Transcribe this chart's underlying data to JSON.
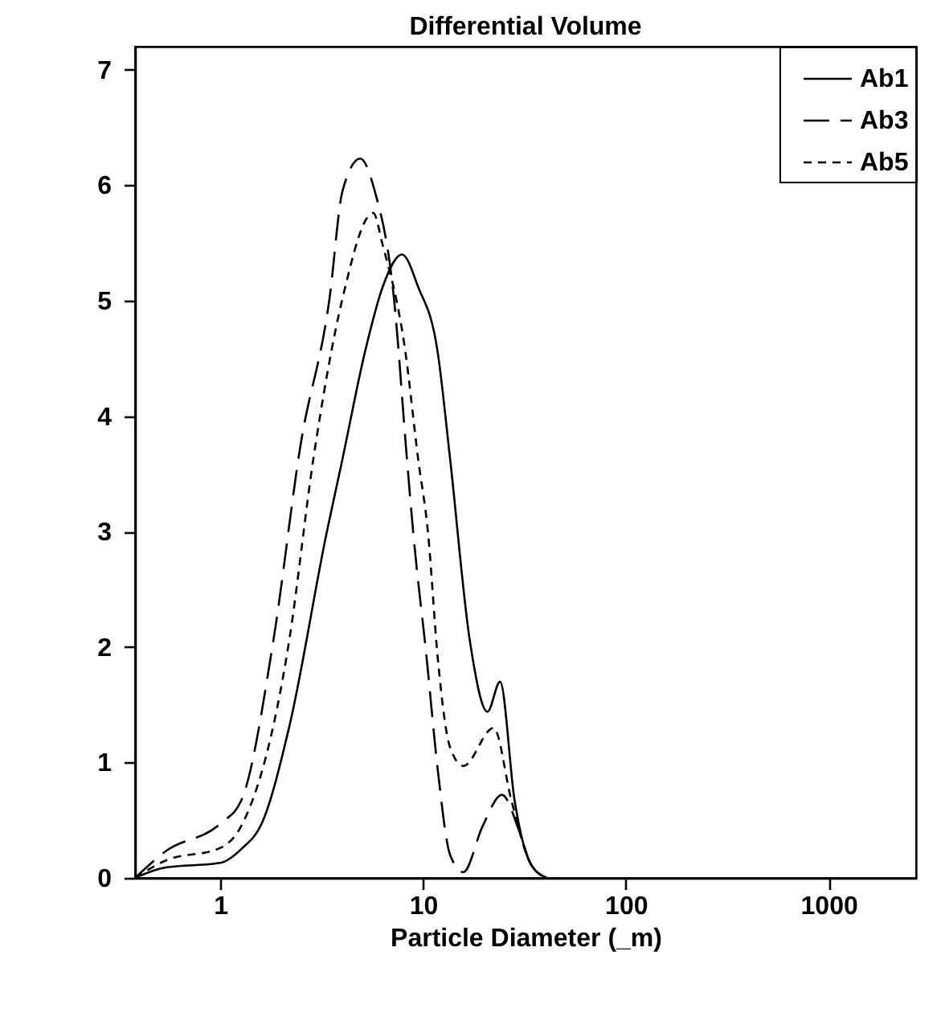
{
  "chart_data": {
    "type": "line",
    "title": "Differential Volume",
    "xlabel": "Particle Diameter (_m)",
    "log": "x",
    "xlim": [
      0.38,
      2700
    ],
    "xticks": [
      1,
      10,
      100,
      1000
    ],
    "ylim": [
      0,
      7.2
    ],
    "yticks": [
      0,
      1,
      2,
      3,
      4,
      5,
      6,
      7
    ],
    "grid": false,
    "legend": "top right",
    "marker": "none",
    "series": [
      {
        "name": "Ab1",
        "color": "#000000",
        "line_style": "solid",
        "x": [
          0.38,
          0.537,
          1,
          1.27,
          1.61,
          2.19,
          3.34,
          4.01,
          5.18,
          6.33,
          7.88,
          9.46,
          11.8,
          13.6,
          17.0,
          20.8,
          24.0,
          28.3,
          34.0,
          40.8
        ],
        "values": [
          0,
          0.09,
          0.13,
          0.25,
          0.48,
          1.31,
          2.98,
          3.63,
          4.56,
          5.12,
          5.4,
          5.12,
          4.56,
          3.63,
          2.06,
          1.44,
          1.7,
          0.67,
          0.12,
          0
        ]
      },
      {
        "name": "Ab3",
        "color": "#000000",
        "line_style": "dashed",
        "x": [
          0.38,
          0.537,
          1,
          1.27,
          1.83,
          2.49,
          3.46,
          4.01,
          4.9,
          5.78,
          7.19,
          8.33,
          8.96,
          10.4,
          11.8,
          13.6,
          15.8,
          19.7,
          24.5,
          29.9,
          34.0,
          40.8
        ],
        "values": [
          0,
          0.23,
          0.47,
          0.67,
          2.06,
          3.75,
          5.02,
          5.95,
          6.23,
          5.95,
          5.02,
          3.63,
          2.98,
          1.92,
          0.95,
          0.2,
          0.05,
          0.45,
          0.72,
          0.4,
          0.12,
          0
        ]
      },
      {
        "name": "Ab5",
        "color": "#000000",
        "line_style": "dotted",
        "x": [
          0.38,
          0.537,
          1,
          1.27,
          2.19,
          2.88,
          4.01,
          5.68,
          6.33,
          8.18,
          9.46,
          10.6,
          11.8,
          13.6,
          15.8,
          22.3,
          27.3,
          34.0,
          40.8
        ],
        "values": [
          0,
          0.15,
          0.26,
          0.45,
          2.06,
          3.63,
          5.02,
          5.76,
          5.48,
          4.56,
          3.63,
          2.98,
          1.92,
          1.13,
          0.97,
          1.3,
          0.67,
          0.12,
          0
        ]
      }
    ]
  }
}
